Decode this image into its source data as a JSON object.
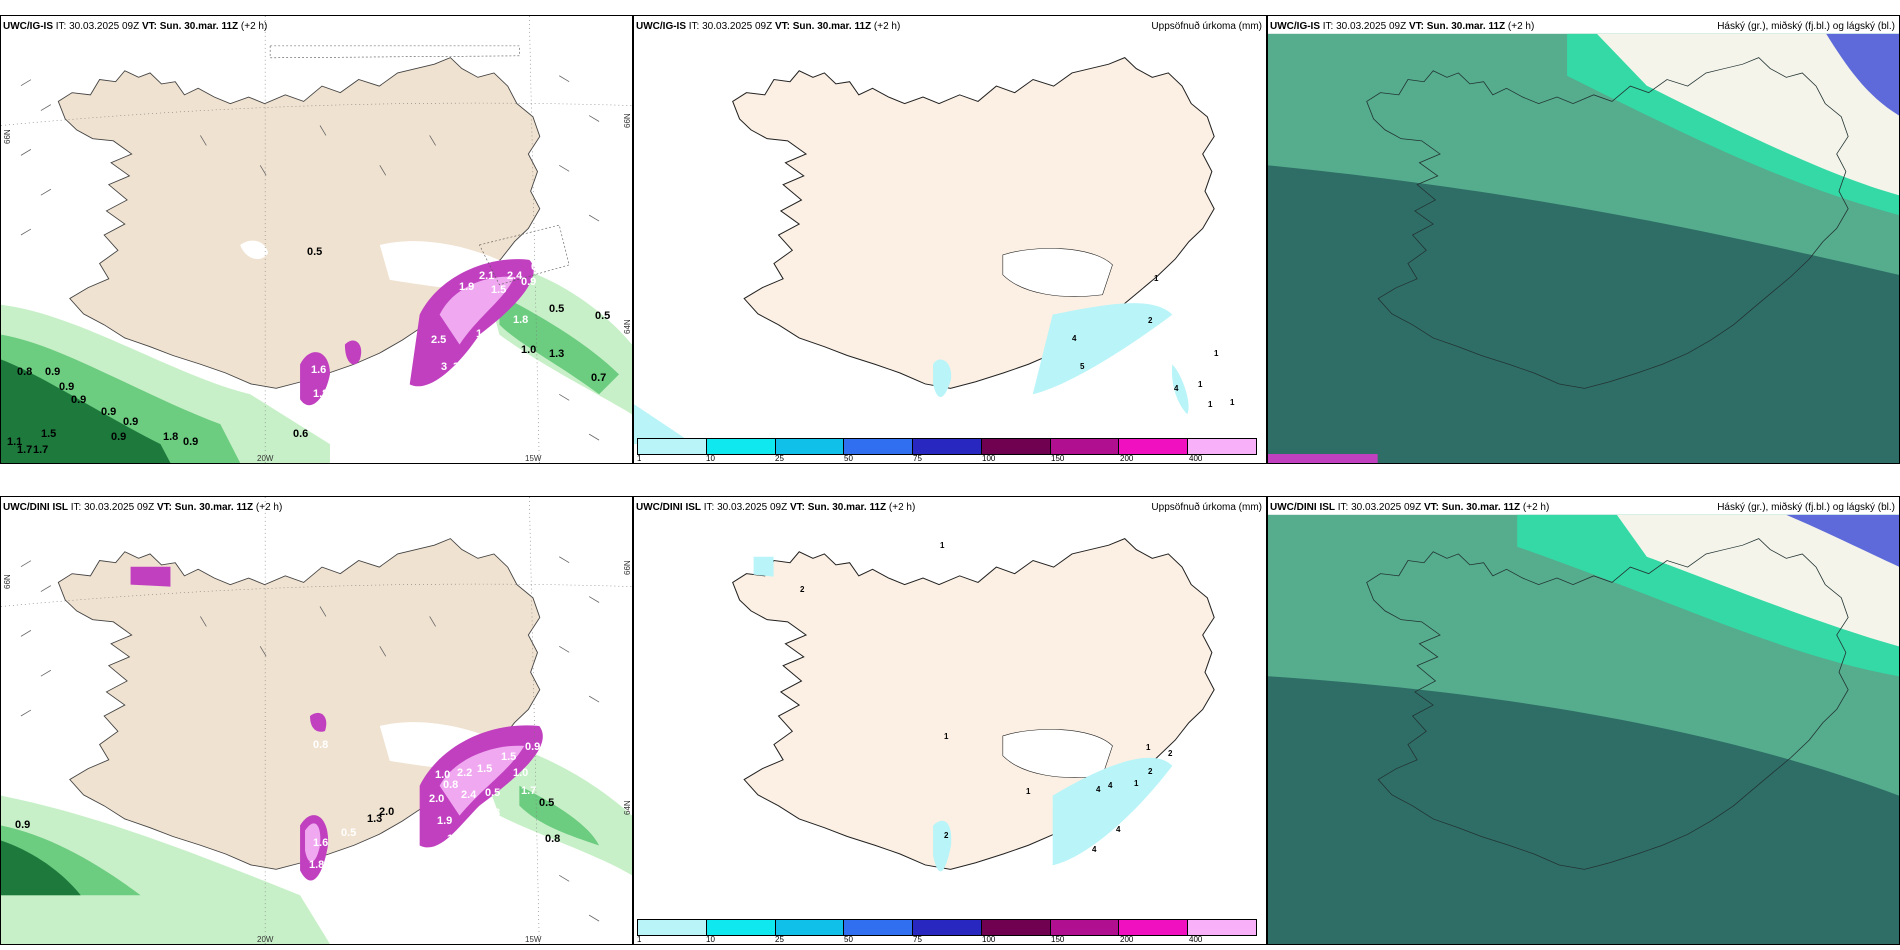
{
  "colors": {
    "land": "#f0e2d0",
    "land_precip": "#fcf0e4",
    "green_light": "#c8f0c8",
    "green_mid": "#6ccc80",
    "green_dark": "#1d7a3c",
    "magenta": "#c040c0",
    "magenta_light": "#f0a8f0",
    "cyan_light": "#b8f4f8",
    "cloud_teal": "#2f6e66",
    "cloud_green": "#55ad8d",
    "cloud_cyan": "#34d9a6",
    "cloud_white": "#f4f4ea",
    "cloud_blue": "#5e6ad9"
  },
  "rows": [
    {
      "model": "UWC/IG-IS",
      "panels": [
        {
          "header": {
            "model": "UWC/IG-IS",
            "it_label": "IT:",
            "it": "30.03.2025 09Z",
            "vt_label": "VT:",
            "vt": "Sun. 30.mar. 11Z",
            "lead": "(+2 h)"
          },
          "title": "",
          "labels": [
            "0.8",
            "0.9",
            "0.9",
            "0.9",
            "1.1",
            "1.7",
            "1.7",
            "1.5",
            "0.9",
            "0.9",
            "0.9",
            "1.8",
            "0.9",
            "0.6",
            "1.0",
            "0.5",
            "0.5",
            "0.7",
            "1.3",
            "0.5"
          ],
          "labels_white": [
            "1.9",
            "2.1",
            "1.5",
            "2.4",
            "1.4",
            "0.9",
            "1.8",
            "2.5",
            "0.9",
            "3",
            "3",
            "1.6",
            "1.8",
            "2.1"
          ],
          "axes": {
            "lon_left": "20W",
            "lon_right": "15W",
            "lat_left": "66N",
            "lat_right": "66N",
            "lat_right2": "64N"
          }
        },
        {
          "header": {
            "model": "UWC/IG-IS",
            "it_label": "IT:",
            "it": "30.03.2025 09Z",
            "vt_label": "VT:",
            "vt": "Sun. 30.mar. 11Z",
            "lead": "(+2 h)"
          },
          "title": "Uppsöfnuð úrkoma (mm)",
          "labels": [
            "1",
            "2",
            "1",
            "4",
            "1",
            "1",
            "1",
            "5",
            "4"
          ]
        },
        {
          "header": {
            "model": "UWC/IG-IS",
            "it_label": "IT:",
            "it": "30.03.2025 09Z",
            "vt_label": "VT:",
            "vt": "Sun. 30.mar. 11Z",
            "lead": "(+2 h)"
          },
          "title": "Háský (gr.), miðský (fj.bl.) og lágský (bl.)"
        }
      ]
    },
    {
      "model": "UWC/DINI ISL",
      "panels": [
        {
          "header": {
            "model": "UWC/DINI ISL",
            "it_label": "IT:",
            "it": "30.03.2025 09Z",
            "vt_label": "VT:",
            "vt": "Sun. 30.mar. 11Z",
            "lead": "(+2 h)"
          },
          "title": "",
          "labels": [
            "0.9",
            "2.0",
            "1.3",
            "0.5",
            "0.8"
          ],
          "labels_white": [
            "0.8",
            "1.8",
            "1.0",
            "0.8",
            "2.2",
            "1.5",
            "1.5",
            "2.4",
            "1.0",
            "2.0",
            "0.5",
            "1.7",
            "1.5",
            "1.3",
            "0.5",
            "1.6",
            "0.9",
            "1.9"
          ],
          "axes": {
            "lon_left": "20W",
            "lon_right": "15W",
            "lat_left": "66N",
            "lat_right": "66N",
            "lat_right2": "64N"
          }
        },
        {
          "header": {
            "model": "UWC/DINI ISL",
            "it_label": "IT:",
            "it": "30.03.2025 09Z",
            "vt_label": "VT:",
            "vt": "Sun. 30.mar. 11Z",
            "lead": "(+2 h)"
          },
          "title": "Uppsöfnuð úrkoma (mm)",
          "labels": [
            "1",
            "2",
            "1",
            "2",
            "2",
            "1",
            "4",
            "4",
            "1",
            "4",
            "1",
            "4",
            "2"
          ]
        },
        {
          "header": {
            "model": "UWC/DINI ISL",
            "it_label": "IT:",
            "it": "30.03.2025 09Z",
            "vt_label": "VT:",
            "vt": "Sun. 30.mar. 11Z",
            "lead": "(+2 h)"
          },
          "title": "Háský (gr.), miðský (fj.bl.) og lágský (bl.)"
        }
      ]
    }
  ],
  "legend": {
    "colors": [
      "#b8f4f8",
      "#10e8f0",
      "#10c0e8",
      "#3070f0",
      "#2828c0",
      "#700050",
      "#b01090",
      "#f010c0",
      "#f8b0f8"
    ],
    "ticks": [
      "1",
      "10",
      "25",
      "50",
      "75",
      "100",
      "150",
      "200",
      "400"
    ]
  }
}
